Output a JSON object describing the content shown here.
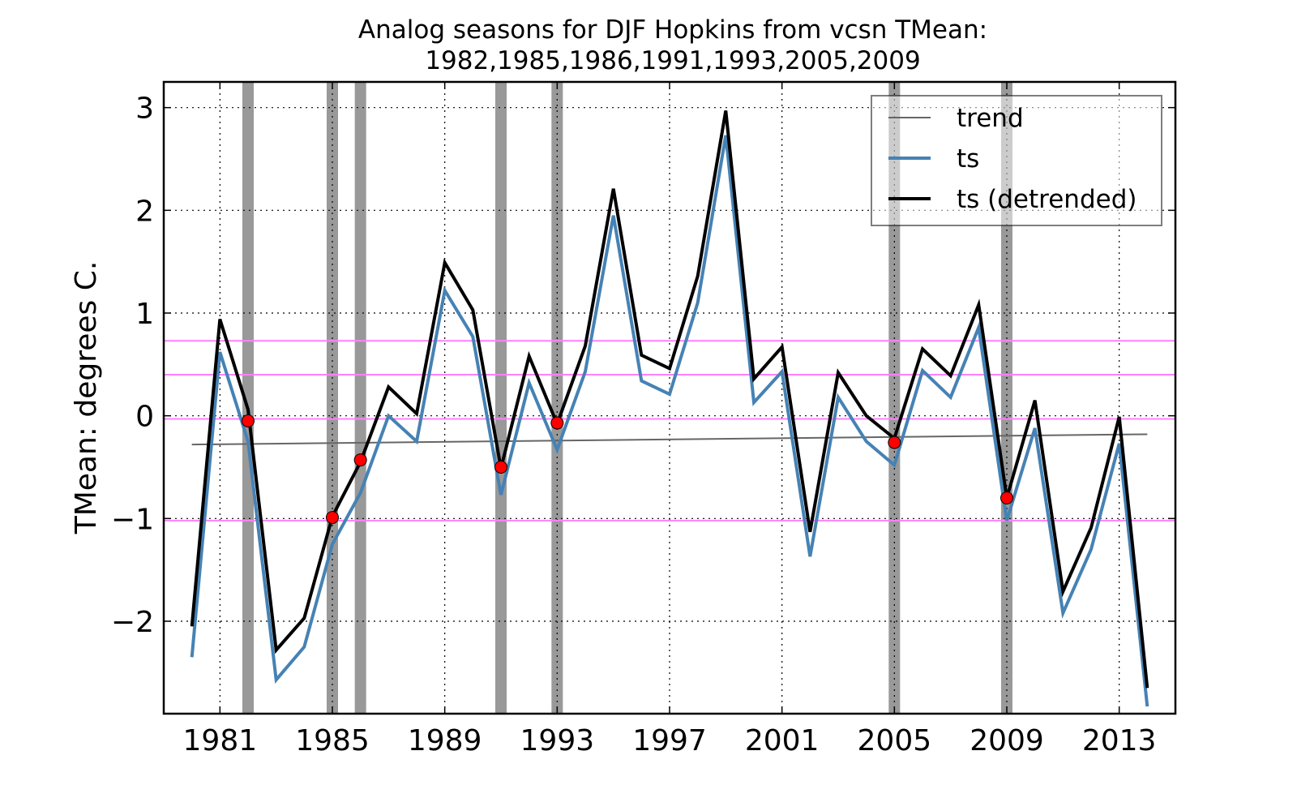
{
  "chart_data": {
    "type": "line",
    "title_line1": "Analog seasons for DJF Hopkins from vcsn TMean:",
    "title_line2": "1982,1985,1986,1991,1993,2005,2009",
    "xlabel": "",
    "ylabel": "TMean: degrees C.",
    "xlim": [
      1979.0,
      2015.0
    ],
    "ylim": [
      -2.9,
      3.25
    ],
    "x_ticks": [
      1981,
      1985,
      1989,
      1993,
      1997,
      2001,
      2005,
      2009,
      2013
    ],
    "y_ticks": [
      -2,
      -1,
      0,
      1,
      2,
      3
    ],
    "y_tick_labels": [
      "−2",
      "−1",
      "0",
      "1",
      "2",
      "3"
    ],
    "grid": true,
    "legend_position": "top-right",
    "x": [
      1980,
      1981,
      1982,
      1983,
      1984,
      1985,
      1986,
      1987,
      1988,
      1989,
      1990,
      1991,
      1992,
      1993,
      1994,
      1995,
      1996,
      1997,
      1998,
      1999,
      2000,
      2001,
      2002,
      2003,
      2004,
      2005,
      2006,
      2007,
      2008,
      2009,
      2010,
      2011,
      2012,
      2013,
      2014
    ],
    "series": [
      {
        "name": "trend",
        "color": "#666666",
        "x": [
          1980,
          2014
        ],
        "values": [
          -0.28,
          -0.18
        ]
      },
      {
        "name": "ts",
        "color": "#4682b4",
        "values": [
          -2.35,
          0.62,
          -0.25,
          -2.57,
          -2.25,
          -1.25,
          -0.75,
          0.0,
          -0.25,
          1.22,
          0.77,
          -0.77,
          0.32,
          -0.33,
          0.43,
          1.95,
          0.34,
          0.21,
          1.1,
          2.73,
          0.13,
          0.43,
          -1.37,
          0.18,
          -0.25,
          -0.48,
          0.44,
          0.18,
          0.86,
          -1.02,
          -0.12,
          -1.92,
          -1.3,
          -0.27,
          -2.83
        ]
      },
      {
        "name": "ts (detrended)",
        "color": "#000000",
        "values": [
          -2.05,
          0.94,
          0.06,
          -2.28,
          -1.97,
          -0.98,
          -0.45,
          0.28,
          0.02,
          1.49,
          1.03,
          -0.51,
          0.58,
          -0.08,
          0.68,
          2.21,
          0.59,
          0.46,
          1.36,
          2.97,
          0.36,
          0.67,
          -1.13,
          0.42,
          0.0,
          -0.22,
          0.65,
          0.39,
          1.08,
          -0.8,
          0.15,
          -1.71,
          -1.09,
          -0.01,
          -2.65
        ]
      }
    ],
    "analog_years": [
      1982,
      1985,
      1986,
      1991,
      1993,
      2005,
      2009
    ],
    "analog_points": [
      -0.05,
      -0.99,
      -0.43,
      -0.5,
      -0.07,
      -0.26,
      -0.8
    ],
    "reference_lines": [
      0.73,
      0.4,
      -0.03,
      -1.02
    ],
    "colors": {
      "analog_band": "#999999",
      "analog_marker": "#ff0000",
      "reference_line": "#ff80ff",
      "trend": "#666666",
      "ts": "#4682b4",
      "detrended": "#000000"
    }
  }
}
